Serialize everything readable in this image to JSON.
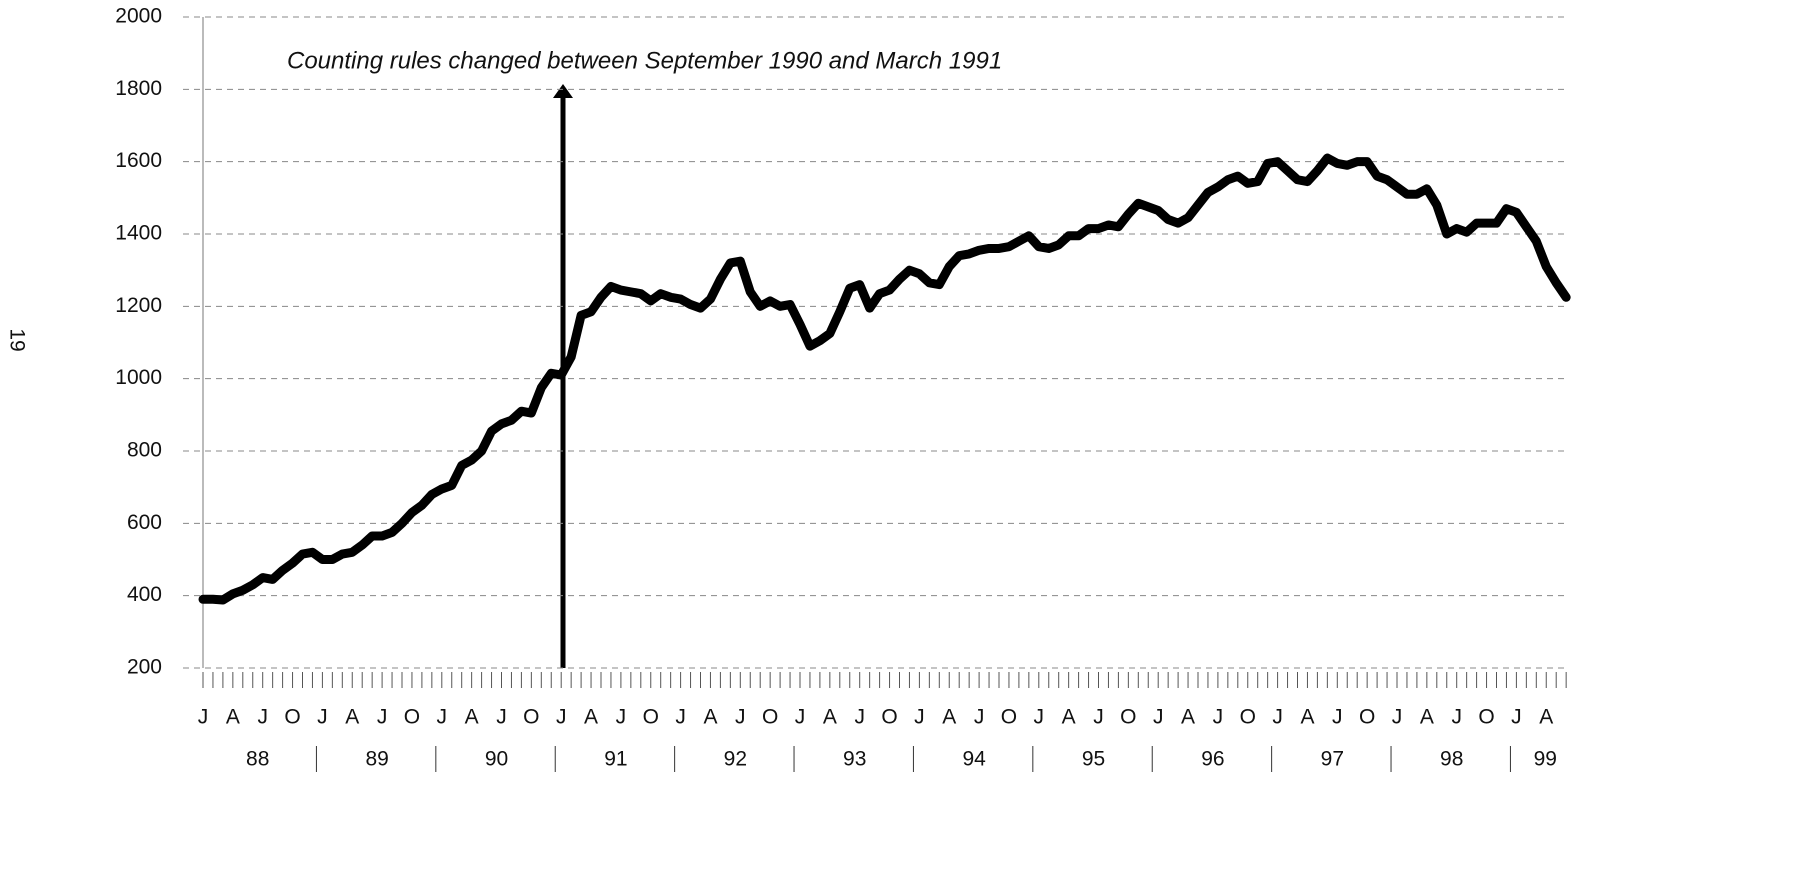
{
  "page_number": "19",
  "chart_data": {
    "type": "line",
    "annotation": "Counting rules changed between September 1990 and March 1991",
    "categories": [
      "J",
      null,
      null,
      "A",
      null,
      null,
      "J",
      null,
      null,
      "O",
      null,
      null,
      "J",
      null,
      null,
      "A",
      null,
      null,
      "J",
      null,
      null,
      "O",
      null,
      null,
      "J",
      null,
      null,
      "A",
      null,
      null,
      "J",
      null,
      null,
      "O",
      null,
      null,
      "J",
      null,
      null,
      "A",
      null,
      null,
      "J",
      null,
      null,
      "O",
      null,
      null,
      "J",
      null,
      null,
      "A",
      null,
      null,
      "J",
      null,
      null,
      "O",
      null,
      null,
      "J",
      null,
      null,
      "A",
      null,
      null,
      "J",
      null,
      null,
      "O",
      null,
      null,
      "J",
      null,
      null,
      "A",
      null,
      null,
      "J",
      null,
      null,
      "O",
      null,
      null,
      "J",
      null,
      null,
      "A",
      null,
      null,
      "J",
      null,
      null,
      "O",
      null,
      null,
      "J",
      null,
      null,
      "A",
      null,
      null,
      "J",
      null,
      null,
      "O",
      null,
      null,
      "J",
      null,
      null,
      "A",
      null,
      null,
      "J",
      null,
      null,
      "O",
      null,
      null,
      "J",
      null,
      null,
      "A",
      null,
      null,
      "J",
      null,
      null,
      "O",
      null,
      null,
      "J",
      null,
      null,
      "A",
      null,
      null
    ],
    "years": [
      "88",
      "89",
      "90",
      "91",
      "92",
      "93",
      "94",
      "95",
      "96",
      "97",
      "98",
      "99"
    ],
    "values": [
      390,
      390,
      388,
      405,
      415,
      430,
      450,
      445,
      470,
      490,
      515,
      520,
      500,
      500,
      515,
      520,
      540,
      565,
      565,
      575,
      600,
      630,
      650,
      680,
      695,
      705,
      760,
      775,
      800,
      855,
      875,
      885,
      910,
      905,
      975,
      1015,
      1010,
      1060,
      1175,
      1185,
      1225,
      1255,
      1245,
      1240,
      1235,
      1215,
      1235,
      1225,
      1220,
      1205,
      1195,
      1220,
      1275,
      1320,
      1325,
      1240,
      1200,
      1215,
      1200,
      1205,
      1150,
      1090,
      1105,
      1125,
      1185,
      1250,
      1260,
      1195,
      1235,
      1245,
      1275,
      1300,
      1290,
      1265,
      1260,
      1310,
      1340,
      1345,
      1355,
      1360,
      1360,
      1365,
      1380,
      1395,
      1365,
      1360,
      1370,
      1395,
      1395,
      1415,
      1415,
      1425,
      1420,
      1455,
      1485,
      1475,
      1465,
      1440,
      1430,
      1445,
      1480,
      1515,
      1530,
      1550,
      1560,
      1540,
      1545,
      1595,
      1600,
      1575,
      1550,
      1545,
      1575,
      1610,
      1595,
      1590,
      1600,
      1600,
      1560,
      1550,
      1530,
      1510,
      1510,
      1525,
      1480,
      1400,
      1415,
      1405,
      1430,
      1430,
      1430,
      1470,
      1460,
      1420,
      1380,
      1310,
      1265,
      1225
    ],
    "color": "#000000",
    "ylim": [
      200,
      2000
    ],
    "yticks": [
      200,
      400,
      600,
      800,
      1000,
      1200,
      1400,
      1600,
      1800,
      2000
    ],
    "grid": true
  }
}
